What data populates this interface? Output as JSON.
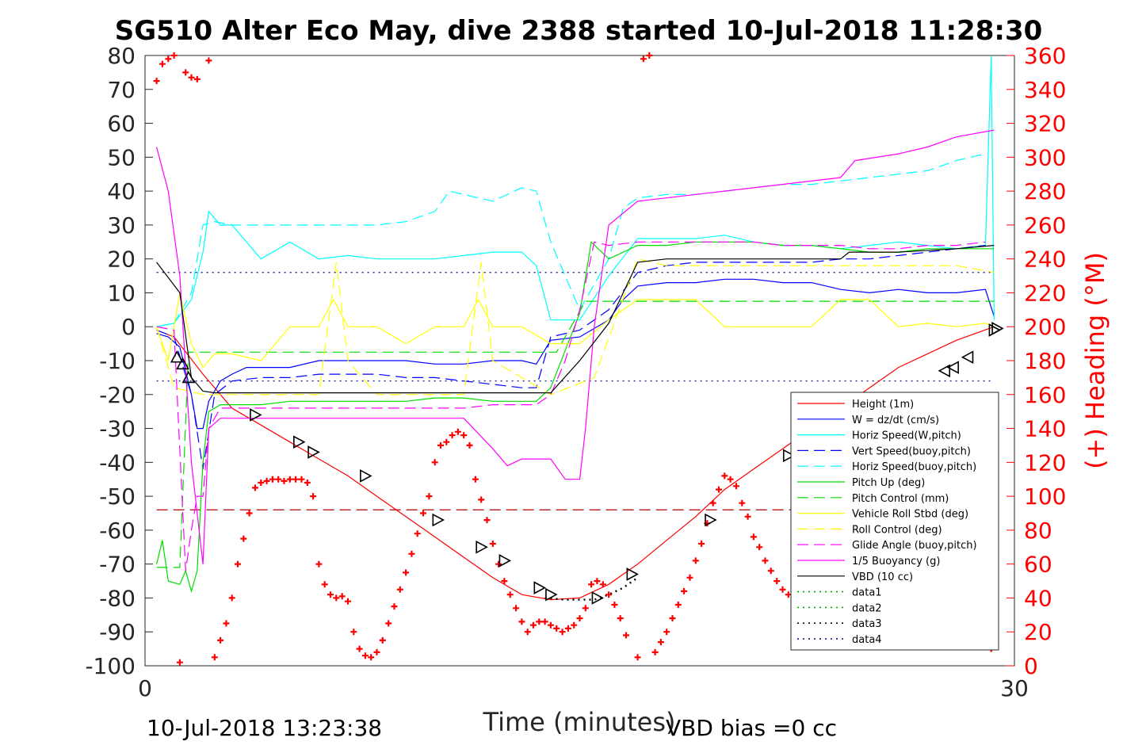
{
  "title": "SG510 Alter Eco May, dive 2388 started 10-Jul-2018 11:28:30",
  "footer": {
    "left": "10-Jul-2018 13:23:38",
    "right": "VBD bias =0 cc"
  },
  "chart_data": {
    "type": "line",
    "title": "SG510 Alter Eco May, dive 2388 started 10-Jul-2018 11:28:30",
    "xlabel": "Time (minutes)",
    "ylabel_left": "",
    "ylabel_right": "(+) Heading (°M)",
    "xlim": [
      0,
      30
    ],
    "ylim_left": [
      -100,
      80
    ],
    "ylim_right": [
      0,
      360
    ],
    "x_ticks": [
      "0",
      "30"
    ],
    "y_ticks_left": [
      "80",
      "70",
      "60",
      "50",
      "40",
      "30",
      "20",
      "10",
      "0",
      "-10",
      "-20",
      "-30",
      "-40",
      "-50",
      "-60",
      "-70",
      "-80",
      "-90",
      "-100"
    ],
    "y_ticks_right": [
      "360",
      "340",
      "320",
      "300",
      "280",
      "260",
      "240",
      "220",
      "200",
      "180",
      "160",
      "140",
      "120",
      "100",
      "80",
      "60",
      "40",
      "20",
      "0"
    ],
    "legend_position": "lower-right",
    "grid": false,
    "series": [
      {
        "name": "Height (1m)",
        "color": "#ff0000",
        "style": "solid",
        "x": [
          0.4,
          1.0,
          2.0,
          3.0,
          4.0,
          5.0,
          6.0,
          7.0,
          8.0,
          9.0,
          10.0,
          11.0,
          12.0,
          13.0,
          14.0,
          15.0,
          16.0,
          17.0,
          18.0,
          19.0,
          20.0,
          21.0,
          22.0,
          23.0,
          24.0,
          25.0,
          26.0,
          27.0,
          28.0,
          29.3
        ],
        "y": [
          -1,
          -3,
          -14,
          -24,
          -29,
          -34,
          -39,
          -44,
          -50,
          -56,
          -62,
          -68,
          -74,
          -79,
          -80.5,
          -80,
          -76,
          -70,
          -63,
          -56,
          -48,
          -42,
          -36,
          -30,
          -24,
          -18,
          -12,
          -8,
          -4,
          0
        ]
      },
      {
        "name": "W = dz/dt (cm/s)",
        "color": "#0000ff",
        "style": "solid",
        "x": [
          0.4,
          0.8,
          1.2,
          1.6,
          1.8,
          2.0,
          2.2,
          2.6,
          3.0,
          3.5,
          4.0,
          5.0,
          6.0,
          7.0,
          8.0,
          9.0,
          10.0,
          11.0,
          12.0,
          13.0,
          13.5,
          14.0,
          15.0,
          16.0,
          16.5,
          17.0,
          18.0,
          19.0,
          20.0,
          21.0,
          22.0,
          23.0,
          24.0,
          25.0,
          26.0,
          27.0,
          28.0,
          29.0,
          29.3
        ],
        "y": [
          -2,
          -3,
          -6,
          -20,
          -30,
          -30,
          -22,
          -16,
          -14,
          -12,
          -12,
          -12,
          -10,
          -10,
          -10,
          -10,
          -11,
          -11,
          -10,
          -10,
          -11,
          -4,
          -3,
          2,
          8,
          12,
          13,
          13,
          14,
          14,
          13,
          13,
          11,
          10,
          11,
          10,
          10,
          11,
          3
        ]
      },
      {
        "name": "Horiz Speed(W,pitch)",
        "color": "#00ffff",
        "style": "solid",
        "x": [
          0.4,
          1.0,
          1.6,
          2.0,
          2.2,
          2.6,
          3.0,
          4.0,
          5.0,
          6.0,
          7.0,
          8.0,
          9.0,
          10.0,
          11.0,
          12.0,
          13.0,
          13.5,
          14.0,
          15.0,
          16.0,
          17.0,
          18.0,
          19.0,
          20.0,
          21.0,
          22.0,
          23.0,
          24.0,
          25.0,
          26.0,
          27.0,
          28.0,
          29.0,
          29.2,
          29.3
        ],
        "y": [
          0,
          1,
          8,
          22,
          34,
          30,
          30,
          20,
          25,
          20,
          21,
          20,
          20,
          20,
          21,
          22,
          22,
          18,
          2,
          2,
          15,
          26,
          26,
          26,
          27,
          25,
          24,
          24,
          23,
          24,
          25,
          24,
          23,
          24,
          80,
          2
        ]
      },
      {
        "name": "Vert Speed(buoy,pitch)",
        "color": "#0000ff",
        "style": "dashed",
        "x": [
          0.4,
          1.0,
          1.6,
          2.0,
          2.4,
          3.0,
          4.0,
          5.0,
          6.0,
          7.0,
          8.0,
          9.0,
          10.0,
          11.0,
          12.0,
          13.0,
          13.5,
          14.0,
          15.0,
          16.0,
          17.0,
          18.0,
          19.0,
          20.0,
          21.0,
          22.0,
          23.0,
          24.0,
          25.0,
          26.0,
          27.0,
          28.0,
          29.0
        ],
        "y": [
          -1,
          -3,
          -20,
          -42,
          -20,
          -16,
          -15,
          -15,
          -14,
          -14,
          -14,
          -15,
          -15,
          -16,
          -17,
          -18,
          -18,
          -3,
          -1,
          5,
          16,
          18,
          19,
          19,
          19,
          19,
          19,
          20,
          20,
          21,
          22,
          23,
          24
        ]
      },
      {
        "name": "Horiz Speed(buoy,pitch)",
        "color": "#00ffff",
        "style": "dashed",
        "x": [
          0.4,
          1.0,
          1.6,
          2.0,
          2.4,
          3.0,
          4.0,
          5.0,
          6.0,
          7.0,
          8.0,
          9.0,
          10.0,
          10.5,
          11.0,
          12.0,
          13.0,
          13.5,
          14.0,
          15.0,
          16.0,
          16.5,
          17.0,
          18.0,
          19.0,
          20.0,
          21.0,
          22.0,
          23.0,
          24.0,
          25.0,
          26.0,
          27.0,
          28.0,
          29.0
        ],
        "y": [
          0,
          1,
          10,
          30,
          31,
          30,
          30,
          30,
          30,
          30,
          30,
          31,
          34,
          40,
          39,
          37,
          41,
          40,
          25,
          5,
          20,
          35,
          38,
          39,
          39,
          40,
          41,
          42,
          42,
          43,
          44,
          45,
          46,
          49,
          51
        ]
      },
      {
        "name": "Pitch Up (deg)",
        "color": "#00dd00",
        "style": "solid",
        "x": [
          0.4,
          0.6,
          0.8,
          1.2,
          1.4,
          1.6,
          1.8,
          2.0,
          2.2,
          2.6,
          3.0,
          4.0,
          5.0,
          6.0,
          7.0,
          8.0,
          9.0,
          10.0,
          11.0,
          12.0,
          13.0,
          13.5,
          14.0,
          15.0,
          15.4,
          16.0,
          17.0,
          18.0,
          19.0,
          20.0,
          21.0,
          22.0,
          23.0,
          24.0,
          25.0,
          26.0,
          27.0,
          28.0,
          29.0,
          29.3
        ],
        "y": [
          -70,
          -63,
          -75,
          -76,
          -72,
          -78,
          -72,
          -40,
          -25,
          -23,
          -23,
          -23,
          -22,
          -22,
          -22,
          -22,
          -22,
          -21,
          -21,
          -22,
          -22,
          -22,
          -18,
          4,
          25,
          20,
          24,
          24,
          25,
          25,
          25,
          24,
          24,
          23,
          22,
          22,
          23,
          23,
          23,
          23
        ]
      },
      {
        "name": "Pitch Control (mm)",
        "color": "#00dd00",
        "style": "dashed",
        "x": [
          0.4,
          1.2,
          1.5,
          1.8,
          2.0,
          3.0,
          13.5,
          13.8,
          14.2,
          15.2,
          15.5,
          29.3
        ],
        "y": [
          -71,
          -71,
          -7.5,
          -7.5,
          -7.5,
          -7.5,
          -7.5,
          -7.5,
          -7.5,
          7.5,
          7.5,
          7.5
        ]
      },
      {
        "name": "Vehicle Roll Stbd (deg)",
        "color": "#ffff00",
        "style": "solid",
        "x": [
          0.4,
          0.8,
          1.2,
          1.6,
          2.0,
          2.4,
          3.0,
          4.0,
          5.0,
          6.0,
          6.5,
          7.0,
          8.0,
          9.0,
          10.0,
          11.0,
          11.5,
          12.0,
          13.0,
          14.0,
          15.0,
          16.0,
          17.0,
          18.0,
          19.0,
          20.0,
          21.0,
          22.0,
          23.0,
          24.0,
          25.0,
          26.0,
          27.0,
          28.0,
          29.0,
          29.3
        ],
        "y": [
          0,
          -10,
          10,
          -5,
          -12,
          -8,
          -8,
          -10,
          0,
          0,
          8,
          0,
          0,
          -5,
          0,
          0,
          8,
          0,
          0,
          -5,
          -5,
          2,
          8,
          8,
          8,
          0,
          0,
          0,
          0,
          8,
          8,
          0,
          1,
          0,
          1,
          0
        ]
      },
      {
        "name": "Roll Control (deg)",
        "color": "#ffff00",
        "style": "dashed",
        "x": [
          0.4,
          1.0,
          2.0,
          3.0,
          5.0,
          6.0,
          6.6,
          7.0,
          8.0,
          10.0,
          11.0,
          11.6,
          12.0,
          14.0,
          15.5,
          17.0,
          18.0,
          19.0,
          20.0,
          22.0,
          23.0,
          24.0,
          25.0,
          27.0,
          28.0,
          29.3
        ],
        "y": [
          0,
          -18,
          -20,
          -20,
          -20,
          -20,
          19,
          -10,
          -20,
          -20,
          -20,
          19,
          -10,
          -20,
          -15,
          20,
          18,
          18,
          18,
          18,
          18,
          18,
          18,
          18,
          18,
          16
        ]
      },
      {
        "name": "Glide Angle (buoy,pitch)",
        "color": "#ff00ff",
        "style": "dashed",
        "x": [
          0.4,
          1.0,
          1.4,
          1.6,
          1.8,
          2.0,
          2.2,
          2.6,
          3.0,
          4.0,
          5.0,
          6.0,
          7.0,
          8.0,
          9.0,
          10.0,
          11.0,
          12.0,
          13.0,
          13.5,
          14.0,
          14.5,
          15.0,
          15.5,
          16.0,
          17.0,
          18.0,
          19.0,
          20.0,
          21.0,
          22.0,
          23.0,
          24.0,
          25.0,
          26.0,
          27.0,
          28.0,
          29.0
        ],
        "y": [
          0,
          -1,
          -72,
          -60,
          -50,
          -50,
          -30,
          -24,
          -24,
          -24,
          -24,
          -24,
          -24,
          -24,
          -24,
          -24,
          -24,
          -23,
          -23,
          -23,
          -20,
          -10,
          5,
          25,
          24,
          25,
          25,
          25,
          25,
          25,
          24,
          24,
          24,
          23,
          23,
          24,
          24,
          25
        ]
      },
      {
        "name": "1/5 Buoyancy (g)",
        "color": "#ff00ff",
        "style": "solid",
        "x": [
          0.4,
          0.8,
          1.2,
          1.6,
          2.0,
          2.2,
          2.6,
          3.0,
          6.0,
          7.0,
          8.0,
          9.0,
          10.0,
          10.5,
          11.0,
          12.0,
          12.5,
          13.0,
          13.5,
          14.0,
          14.5,
          15.0,
          15.2,
          15.5,
          16.0,
          17.0,
          20.0,
          22.0,
          24.0,
          24.5,
          26.0,
          27.0,
          28.0,
          29.3
        ],
        "y": [
          53,
          40,
          15,
          -40,
          -70,
          -30,
          -27,
          -27,
          -27,
          -27,
          -27,
          -27,
          -27,
          -27,
          -27,
          -36,
          -41,
          -39,
          -39,
          -39,
          -45,
          -45,
          -30,
          0,
          30,
          37,
          40,
          42,
          44,
          49,
          51,
          53,
          56,
          58
        ]
      },
      {
        "name": "VBD (10 cc)",
        "color": "#000000",
        "style": "solid",
        "x": [
          0.4,
          1.2,
          1.6,
          2.0,
          2.4,
          13.0,
          13.6,
          14.0,
          15.0,
          16.0,
          17.0,
          18.0,
          20.0,
          22.0,
          24.0,
          24.3,
          26.0,
          28.0,
          29.3
        ],
        "y": [
          19,
          10,
          -15,
          -19,
          -19.5,
          -19.5,
          -19.5,
          -19.5,
          -10,
          1,
          19,
          20,
          20,
          20,
          20,
          22,
          22,
          23,
          24
        ]
      },
      {
        "name": "data1",
        "color": "#00aa00",
        "style": "dotted",
        "x": [],
        "y": []
      },
      {
        "name": "data2",
        "color": "#00aa00",
        "style": "dotted",
        "x": [],
        "y": []
      },
      {
        "name": "data3",
        "color": "#000000",
        "style": "dotted",
        "x": [
          13.8,
          14.5,
          15.0,
          15.5,
          16.0,
          16.5,
          17.0
        ],
        "y": [
          -80,
          -80.5,
          -80.5,
          -80.5,
          -79,
          -77,
          -74
        ]
      },
      {
        "name": "data4",
        "color": "#00008b",
        "style": "dotted",
        "x": [],
        "y": []
      }
    ],
    "reference_lines": [
      {
        "y": 16,
        "color": "#00008b",
        "style": "dotted"
      },
      {
        "y": -16,
        "color": "#00008b",
        "style": "dotted"
      },
      {
        "y": -54,
        "color": "#aa0000",
        "style": "dashed"
      }
    ],
    "markers": {
      "name": "Height (1m) triangles",
      "x": [
        1.1,
        1.3,
        1.5,
        3.8,
        5.3,
        5.8,
        7.6,
        10.1,
        11.6,
        12.4,
        13.6,
        14.0,
        15.6,
        16.8,
        19.5,
        22.2,
        24.7,
        27.6,
        27.9,
        28.4,
        29.3,
        29.4
      ],
      "y": [
        -9,
        -11,
        -15,
        -26,
        -34,
        -37,
        -44,
        -57,
        -65,
        -69,
        -77,
        -79,
        -80,
        -73,
        -57,
        -38,
        -29,
        -13,
        -12,
        -9,
        -1,
        -0.5
      ]
    },
    "heading_series": {
      "name": "(+) Heading (°M)",
      "color": "#ff0000",
      "x": [
        0.4,
        0.6,
        0.8,
        1.0,
        1.4,
        1.6,
        1.8,
        2.2,
        1.2,
        2.4,
        2.6,
        2.8,
        3.0,
        3.2,
        3.4,
        3.6,
        3.8,
        4.0,
        4.2,
        4.4,
        4.6,
        4.8,
        5.0,
        5.2,
        5.4,
        5.6,
        5.8,
        6.0,
        6.2,
        6.4,
        6.6,
        6.8,
        7.0,
        7.2,
        7.4,
        7.6,
        7.8,
        8.0,
        8.2,
        8.4,
        8.6,
        8.8,
        9.0,
        9.2,
        9.4,
        9.6,
        9.8,
        10.0,
        10.2,
        10.4,
        10.6,
        10.8,
        11.0,
        11.2,
        11.4,
        11.6,
        11.8,
        12.0,
        12.2,
        12.4,
        12.6,
        12.8,
        13.0,
        13.2,
        13.4,
        13.6,
        13.8,
        14.0,
        14.2,
        14.4,
        14.6,
        14.8,
        15.0,
        15.2,
        15.4,
        15.6,
        15.8,
        16.0,
        16.2,
        16.4,
        16.6,
        17.0,
        17.2,
        17.4,
        17.6,
        17.8,
        18.0,
        18.2,
        18.4,
        18.6,
        18.8,
        19.0,
        19.2,
        19.4,
        19.6,
        19.8,
        20.0,
        20.2,
        20.4,
        20.6,
        20.8,
        21.0,
        21.2,
        21.4,
        21.6,
        21.8,
        22.0,
        22.2,
        22.4,
        22.6,
        22.8,
        23.0,
        23.2,
        23.4,
        23.6,
        23.8,
        24.0,
        24.2,
        24.4,
        24.6,
        24.8,
        25.0,
        25.2,
        25.4,
        25.6,
        25.8,
        26.0,
        28.0,
        28.4,
        28.8,
        29.2
      ],
      "y": [
        345,
        355,
        358,
        360,
        350,
        347,
        346,
        357,
        2,
        5,
        15,
        25,
        40,
        60,
        75,
        90,
        105,
        108,
        109,
        110,
        110,
        109,
        110,
        110,
        110,
        108,
        100,
        60,
        48,
        42,
        40,
        41,
        38,
        20,
        10,
        6,
        5,
        8,
        15,
        25,
        35,
        45,
        55,
        66,
        78,
        90,
        100,
        120,
        130,
        132,
        136,
        138,
        136,
        130,
        110,
        98,
        86,
        72,
        60,
        50,
        42,
        34,
        26,
        20,
        24,
        26,
        26,
        24,
        22,
        20,
        22,
        24,
        28,
        34,
        48,
        50,
        48,
        42,
        36,
        28,
        18,
        5,
        358,
        360,
        8,
        14,
        20,
        28,
        36,
        44,
        52,
        62,
        72,
        84,
        96,
        104,
        112,
        110,
        106,
        96,
        88,
        76,
        70,
        62,
        56,
        50,
        45,
        42,
        40,
        38,
        42,
        35,
        40,
        48,
        60,
        70,
        84,
        90,
        96,
        98,
        96,
        92,
        88,
        86,
        90,
        96,
        100,
        110,
        116,
        120,
        10
      ]
    }
  }
}
